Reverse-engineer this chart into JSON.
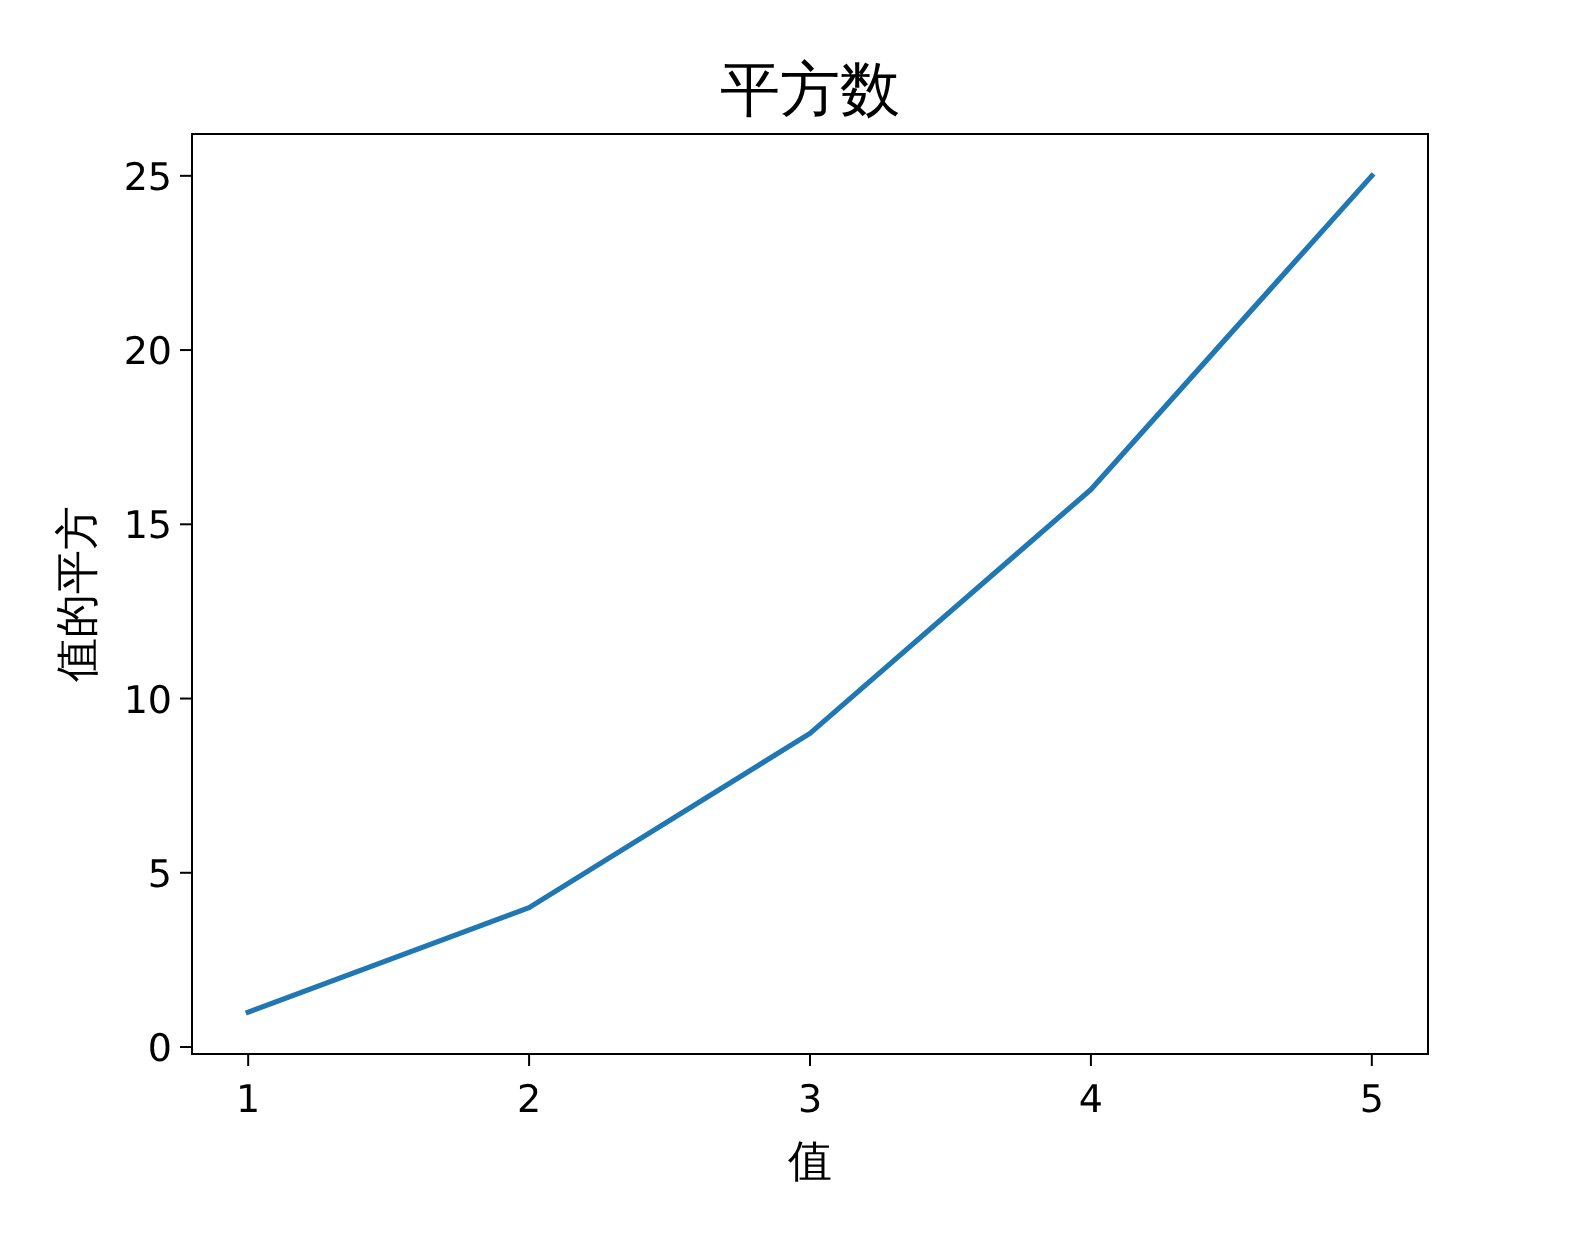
{
  "chart_data": {
    "type": "line",
    "title": "平方数",
    "xlabel": "值",
    "ylabel": "值的平方",
    "x": [
      1,
      2,
      3,
      4,
      5
    ],
    "series": [
      {
        "color": "#1f77b4",
        "values": [
          1,
          4,
          9,
          16,
          25
        ]
      }
    ],
    "xlim": [
      0.8,
      5.2
    ],
    "ylim": [
      -0.2,
      26.2
    ],
    "xticks": [
      1,
      2,
      3,
      4,
      5
    ],
    "yticks": [
      0,
      5,
      10,
      15,
      20,
      25
    ],
    "marker": "none",
    "line_style": "solid"
  }
}
